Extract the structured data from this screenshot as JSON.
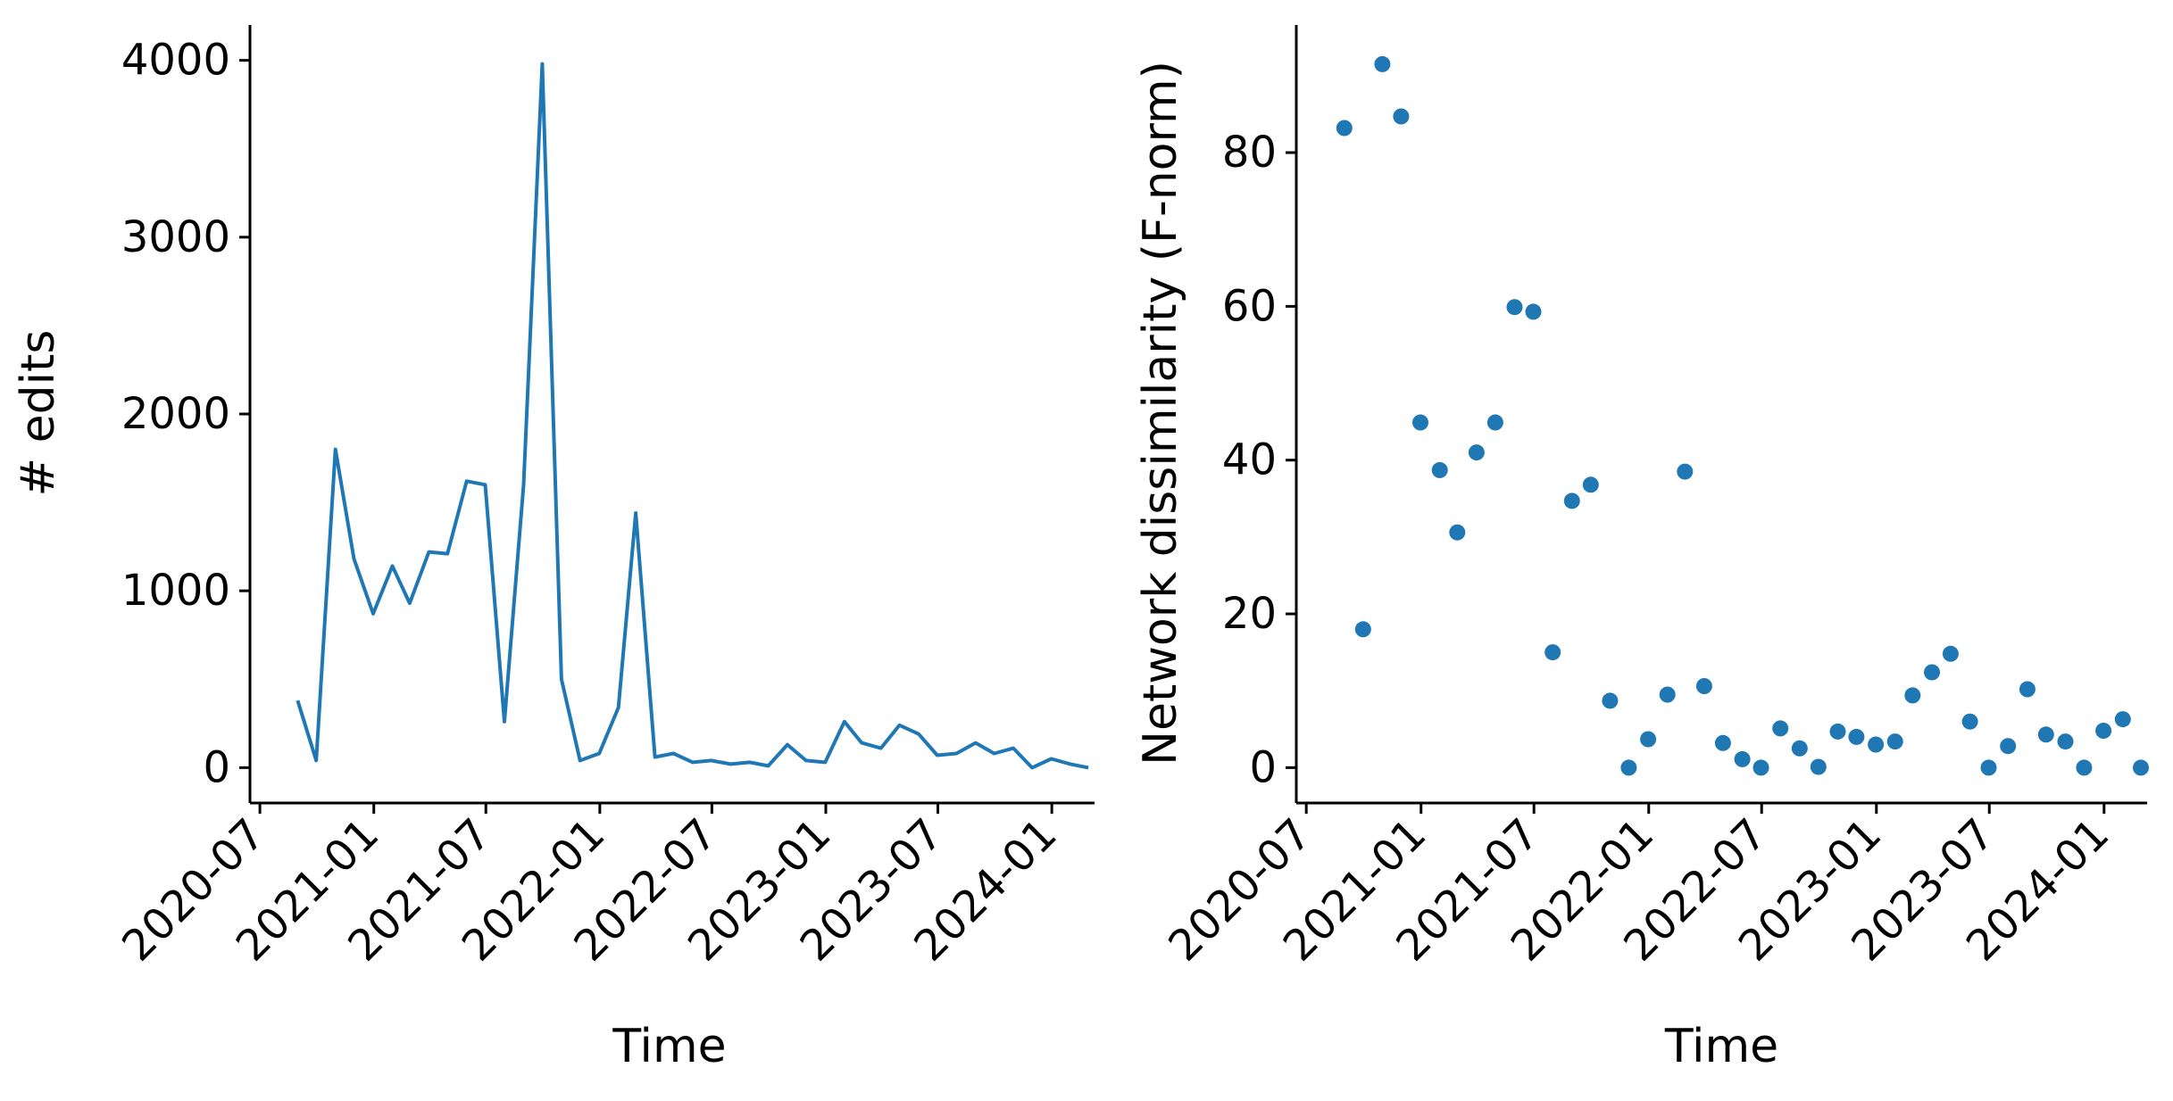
{
  "chart_data": [
    {
      "type": "line",
      "xlabel": "Time",
      "ylabel": "# edits",
      "x_ticks": [
        "2020-07",
        "2021-01",
        "2021-07",
        "2022-01",
        "2022-07",
        "2023-01",
        "2023-07",
        "2024-01"
      ],
      "y_ticks": [
        "0",
        "1000",
        "2000",
        "3000",
        "4000"
      ],
      "xlim": [
        "2020-06-15",
        "2024-03-10"
      ],
      "ylim": [
        -200,
        4200
      ],
      "grid": false,
      "color": "#1f77b4",
      "series": [
        {
          "x": [
            "2020-08-31",
            "2020-09-30",
            "2020-10-31",
            "2020-11-30",
            "2020-12-31",
            "2021-01-31",
            "2021-02-28",
            "2021-03-31",
            "2021-04-30",
            "2021-05-31",
            "2021-06-30",
            "2021-07-31",
            "2021-08-31",
            "2021-09-30",
            "2021-10-31",
            "2021-11-30",
            "2021-12-31",
            "2022-01-31",
            "2022-02-28",
            "2022-03-31",
            "2022-04-30",
            "2022-05-31",
            "2022-06-30",
            "2022-07-31",
            "2022-08-31",
            "2022-09-30",
            "2022-10-31",
            "2022-11-30",
            "2022-12-31",
            "2023-01-31",
            "2023-02-28",
            "2023-03-31",
            "2023-04-30",
            "2023-05-31",
            "2023-06-30",
            "2023-07-31",
            "2023-08-31",
            "2023-09-30",
            "2023-10-31",
            "2023-11-30",
            "2023-12-31",
            "2024-01-31",
            "2024-02-29"
          ],
          "y": [
            380,
            40,
            1800,
            1180,
            870,
            1140,
            930,
            1220,
            1210,
            1620,
            1600,
            260,
            1600,
            3980,
            500,
            40,
            80,
            340,
            1440,
            60,
            80,
            30,
            40,
            20,
            30,
            10,
            130,
            40,
            30,
            260,
            140,
            110,
            240,
            190,
            70,
            80,
            140,
            80,
            110,
            0,
            50,
            20,
            0
          ]
        }
      ]
    },
    {
      "type": "scatter",
      "xlabel": "Time",
      "ylabel": "Network dissimilarity (F-norm)",
      "x_ticks": [
        "2020-07",
        "2021-01",
        "2021-07",
        "2022-01",
        "2022-07",
        "2023-01",
        "2023-07",
        "2024-01"
      ],
      "y_ticks": [
        "0",
        "20",
        "40",
        "60",
        "80"
      ],
      "xlim": [
        "2020-06-15",
        "2024-03-10"
      ],
      "ylim": [
        -4.6,
        96.6
      ],
      "grid": false,
      "color": "#1f77b4",
      "series": [
        {
          "x": [
            "2020-08-31",
            "2020-09-30",
            "2020-10-31",
            "2020-11-30",
            "2020-12-31",
            "2021-01-31",
            "2021-02-28",
            "2021-03-31",
            "2021-04-30",
            "2021-05-31",
            "2021-06-30",
            "2021-07-31",
            "2021-08-31",
            "2021-09-30",
            "2021-10-31",
            "2021-11-30",
            "2021-12-31",
            "2022-01-31",
            "2022-02-28",
            "2022-03-31",
            "2022-04-30",
            "2022-05-31",
            "2022-06-30",
            "2022-07-31",
            "2022-08-31",
            "2022-09-30",
            "2022-10-31",
            "2022-11-30",
            "2022-12-31",
            "2023-01-31",
            "2023-02-28",
            "2023-03-31",
            "2023-04-30",
            "2023-05-31",
            "2023-06-30",
            "2023-07-31",
            "2023-08-31",
            "2023-09-30",
            "2023-10-31",
            "2023-11-30",
            "2023-12-31",
            "2024-01-31",
            "2024-02-29"
          ],
          "y": [
            83.2,
            18.0,
            91.5,
            84.7,
            44.9,
            38.7,
            30.6,
            41.0,
            44.9,
            59.9,
            59.3,
            15.0,
            34.7,
            36.8,
            8.7,
            0.0,
            3.7,
            9.5,
            38.5,
            10.6,
            3.2,
            1.1,
            0.0,
            5.1,
            2.5,
            0.1,
            4.7,
            4.0,
            3.0,
            3.4,
            9.4,
            12.4,
            14.8,
            6.0,
            0.0,
            2.8,
            10.2,
            4.3,
            3.4,
            0.0,
            4.8,
            6.3,
            0.0
          ]
        }
      ]
    }
  ]
}
